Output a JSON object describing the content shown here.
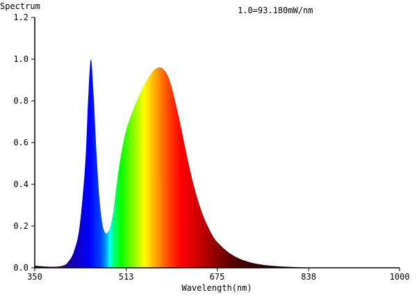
{
  "chart_data": {
    "type": "area",
    "ylabel": "Spectrum",
    "xlabel": "Wavelength(nm)",
    "annotation": "1.0=93.180mW/nm",
    "xlim": [
      350,
      1000
    ],
    "ylim": [
      0,
      1.2
    ],
    "x_ticks": [
      350,
      513,
      675,
      838,
      1000
    ],
    "x_tick_labels": [
      "350",
      "513",
      "675",
      "838",
      "1000"
    ],
    "y_ticks": [
      0,
      0.2,
      0.4,
      0.6,
      0.8,
      1.0,
      1.2
    ],
    "y_tick_labels": [
      "0.0",
      "0.2",
      "0.4",
      "0.6",
      "0.8",
      "1.0",
      "1.2"
    ],
    "grid": false,
    "fill": "visible-spectrum-gradient",
    "series": [
      {
        "x": [
          350,
          380,
          400,
          410,
          420,
          430,
          440,
          445,
          450,
          455,
          460,
          465,
          470,
          475,
          480,
          485,
          490,
          495,
          500,
          505,
          510,
          515,
          520,
          530,
          540,
          550,
          560,
          570,
          580,
          590,
          600,
          610,
          620,
          630,
          640,
          650,
          660,
          670,
          680,
          690,
          700,
          710,
          720,
          740,
          760,
          780,
          800,
          830,
          860,
          1000
        ],
        "y": [
          0.01,
          0.005,
          0.01,
          0.03,
          0.08,
          0.2,
          0.5,
          0.8,
          1.0,
          0.82,
          0.55,
          0.34,
          0.22,
          0.17,
          0.17,
          0.2,
          0.27,
          0.38,
          0.48,
          0.56,
          0.63,
          0.68,
          0.72,
          0.79,
          0.85,
          0.9,
          0.94,
          0.96,
          0.95,
          0.9,
          0.8,
          0.68,
          0.55,
          0.43,
          0.33,
          0.25,
          0.19,
          0.14,
          0.11,
          0.085,
          0.065,
          0.05,
          0.038,
          0.022,
          0.013,
          0.008,
          0.005,
          0.002,
          0.001,
          0
        ]
      }
    ]
  }
}
